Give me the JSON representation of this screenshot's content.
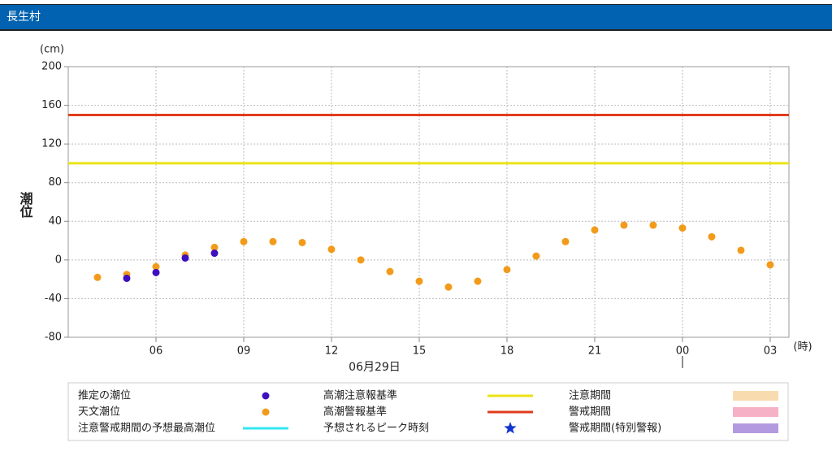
{
  "chart_data": {
    "type": "scatter",
    "title": "長生村",
    "y_label": "潮位",
    "y_unit": "(cm)",
    "x_unit": "(時)",
    "date_label": "06月29日",
    "xlim": [
      3,
      27.64
    ],
    "xticks": [
      {
        "value": 6,
        "label": "06"
      },
      {
        "value": 9,
        "label": "09"
      },
      12,
      15,
      18,
      21,
      {
        "value": 24,
        "label": "00"
      },
      {
        "value": 27,
        "label": "03"
      }
    ],
    "ylim": [
      -80,
      200
    ],
    "yticks": [
      -80,
      -40,
      0,
      40,
      80,
      120,
      160,
      200
    ],
    "grid": true,
    "series": [
      {
        "name": "推定の潮位",
        "color": "#3d0fbf",
        "x": [
          5,
          6,
          7,
          8
        ],
        "values": [
          -19,
          -13,
          2,
          7
        ]
      },
      {
        "name": "天文潮位",
        "color": "#f29b1b",
        "x": [
          4,
          5,
          6,
          7,
          8,
          9,
          10,
          11,
          12,
          13,
          14,
          15,
          16,
          17,
          18,
          19,
          20,
          21,
          22,
          23,
          24,
          25,
          26,
          27
        ],
        "values": [
          -18,
          -15,
          -7,
          5,
          13,
          19,
          19,
          18,
          11,
          0,
          -12,
          -22,
          -28,
          -22,
          -10,
          4,
          19,
          31,
          36,
          36,
          33,
          24,
          10,
          -5
        ]
      }
    ],
    "reference_lines": [
      {
        "name": "高潮注意報基準",
        "color": "#ebe315",
        "value": 100
      },
      {
        "name": "高潮警報基準",
        "color": "#e03c1c",
        "value": 150
      }
    ],
    "legend_items": [
      {
        "name": "注意警戒期間の予想最高潮位",
        "color": "#33e6f0",
        "symbol": "line"
      },
      {
        "name": "予想されるピーク時刻",
        "color": "#1035d0",
        "symbol": "star"
      },
      {
        "name": "注意期間",
        "color": "#f8dcb0",
        "symbol": "rect"
      },
      {
        "name": "警戒期間",
        "color": "#f7b1c7",
        "symbol": "rect"
      },
      {
        "name": "警戒期間(特別警報)",
        "color": "#b39ae0",
        "symbol": "rect"
      }
    ]
  }
}
